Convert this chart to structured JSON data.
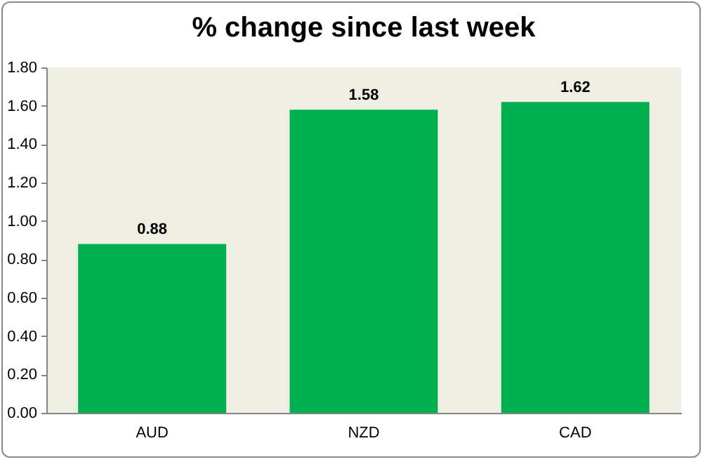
{
  "chart_data": {
    "type": "bar",
    "title": "% change since last week",
    "categories": [
      "AUD",
      "NZD",
      "CAD"
    ],
    "values": [
      0.88,
      1.58,
      1.62
    ],
    "color": "#00b050",
    "ylim": [
      0,
      1.8
    ],
    "yticks": [
      {
        "value": 0,
        "label": "0.00"
      },
      {
        "value": 0.2,
        "label": "0.20"
      },
      {
        "value": 0.4,
        "label": "0.40"
      },
      {
        "value": 0.6,
        "label": "0.60"
      },
      {
        "value": 0.8,
        "label": "0.80"
      },
      {
        "value": 1.0,
        "label": "1.00"
      },
      {
        "value": 1.2,
        "label": "1.20"
      },
      {
        "value": 1.4,
        "label": "1.40"
      },
      {
        "value": 1.6,
        "label": "1.60"
      },
      {
        "value": 1.8,
        "label": "1.80"
      }
    ],
    "data_labels": true,
    "grid": false
  }
}
